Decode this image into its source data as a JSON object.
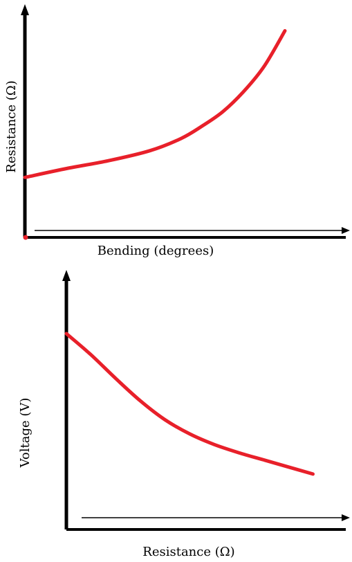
{
  "chart_data": [
    {
      "type": "line",
      "title": "",
      "xlabel": "Bending (degrees)",
      "ylabel": "Resistance (Ω)",
      "ticks": "none",
      "grid": false,
      "legend": "none",
      "series": [
        {
          "color": "#e8202a",
          "x": [
            0,
            0.16,
            0.32,
            0.48,
            0.6,
            0.68,
            0.76,
            0.84,
            0.92,
            1.0
          ],
          "y": [
            0.27,
            0.31,
            0.345,
            0.39,
            0.445,
            0.5,
            0.565,
            0.655,
            0.77,
            0.93
          ]
        }
      ],
      "xlim": [
        0,
        1.25
      ],
      "ylim": [
        0,
        1.05
      ]
    },
    {
      "type": "line",
      "title": "",
      "xlabel": "Resistance (Ω)",
      "ylabel": "Voltage (V)",
      "ticks": "none",
      "grid": false,
      "legend": "none",
      "series": [
        {
          "color": "#e8202a",
          "x": [
            0,
            0.1,
            0.2,
            0.3,
            0.4,
            0.5,
            0.6,
            0.7,
            0.8,
            0.9,
            1.0
          ],
          "y": [
            0.83,
            0.74,
            0.64,
            0.545,
            0.465,
            0.405,
            0.36,
            0.325,
            0.295,
            0.265,
            0.235
          ]
        }
      ],
      "xlim": [
        0,
        1.15
      ],
      "ylim": [
        0,
        1.1
      ]
    }
  ]
}
